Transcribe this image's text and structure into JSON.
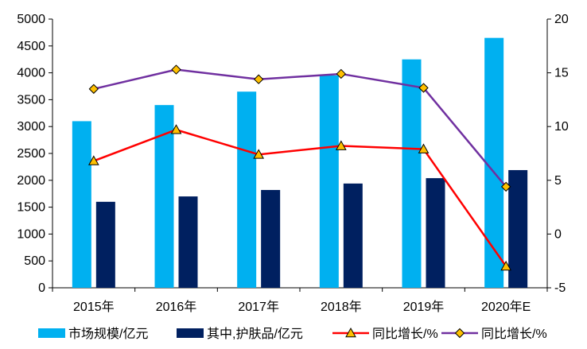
{
  "chart_data": {
    "type": "bar",
    "categories": [
      "2015年",
      "2016年",
      "2017年",
      "2018年",
      "2019年",
      "2020年E"
    ],
    "series": [
      {
        "name": "市场规模/亿元",
        "kind": "bar",
        "axis": "left",
        "color": "#00B0F0",
        "values": [
          3100,
          3400,
          3650,
          3950,
          4250,
          4650
        ]
      },
      {
        "name": "其中,护肤品/亿元",
        "kind": "bar",
        "axis": "left",
        "color": "#002060",
        "values": [
          1600,
          1700,
          1820,
          1940,
          2040,
          2190
        ]
      },
      {
        "name": "同比增长/%",
        "kind": "line",
        "axis": "right",
        "color": "#FF0000",
        "marker": "triangle",
        "values": [
          6.8,
          9.7,
          7.4,
          8.2,
          7.9,
          -3.0
        ]
      },
      {
        "name": "同比增长/%",
        "kind": "line",
        "axis": "right",
        "color": "#7030A0",
        "marker": "diamond",
        "values": [
          13.5,
          15.3,
          14.4,
          14.9,
          13.6,
          4.4
        ]
      }
    ],
    "y_left": {
      "min": 0,
      "max": 5000,
      "step": 500,
      "ticks": [
        "0",
        "500",
        "1000",
        "1500",
        "2000",
        "2500",
        "3000",
        "3500",
        "4000",
        "4500",
        "5000"
      ]
    },
    "y_right": {
      "min": -5,
      "max": 20,
      "step": 5,
      "ticks": [
        "-5",
        "0",
        "5",
        "10",
        "15",
        "20"
      ]
    },
    "marker_fill": "#FFC000",
    "grid": false,
    "legend_position": "bottom"
  }
}
